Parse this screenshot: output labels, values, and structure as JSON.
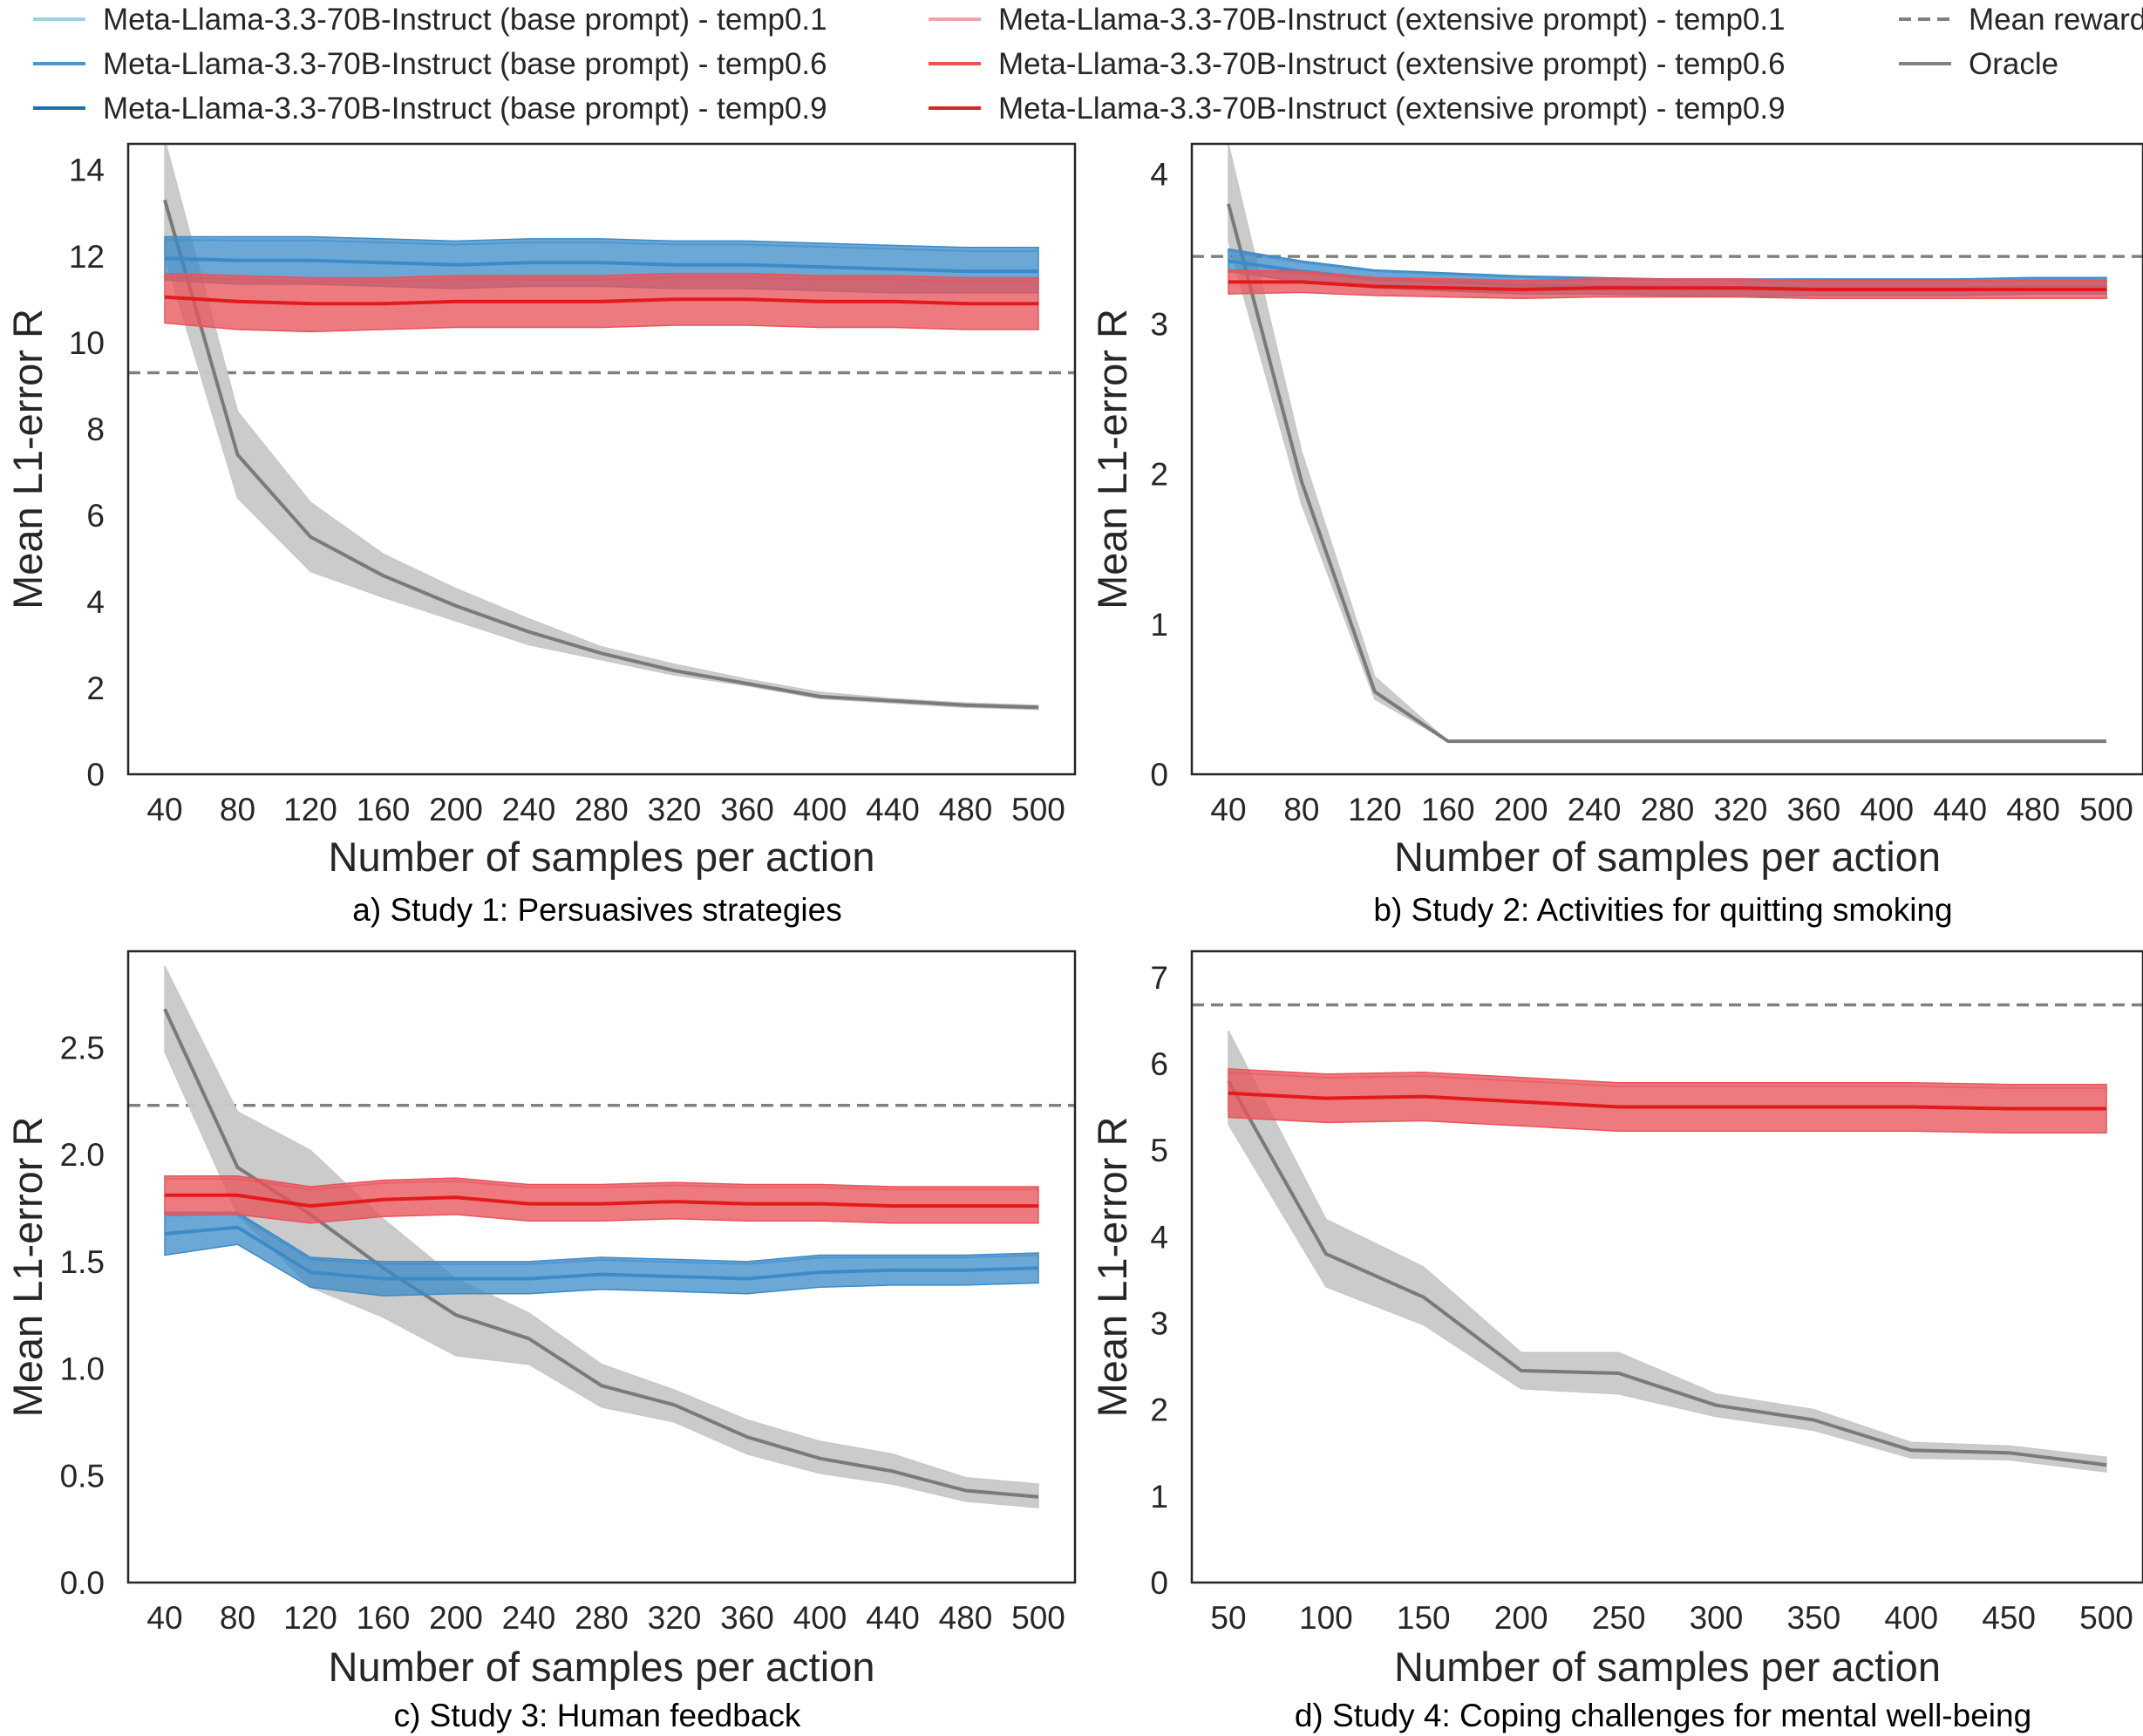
{
  "legend": {
    "entries": [
      {
        "label": "Meta-Llama-3.3-70B-Instruct (base prompt) - temp0.1",
        "color": "#a6cee3",
        "style": "solid"
      },
      {
        "label": "Meta-Llama-3.3-70B-Instruct (base prompt) - temp0.6",
        "color": "#4f95c9",
        "style": "solid"
      },
      {
        "label": "Meta-Llama-3.3-70B-Instruct (base prompt) - temp0.9",
        "color": "#1f6fab",
        "style": "solid"
      },
      {
        "label": "Meta-Llama-3.3-70B-Instruct (extensive prompt) - temp0.1",
        "color": "#f4a3a3",
        "style": "solid"
      },
      {
        "label": "Meta-Llama-3.3-70B-Instruct (extensive prompt) - temp0.6",
        "color": "#eb5454",
        "style": "solid"
      },
      {
        "label": "Meta-Llama-3.3-70B-Instruct (extensive prompt) - temp0.9",
        "color": "#d62728",
        "style": "solid"
      },
      {
        "label": "Mean reward",
        "color": "#808080",
        "style": "dashed"
      },
      {
        "label": "Oracle",
        "color": "#808080",
        "style": "solid"
      }
    ]
  },
  "colors": {
    "base": "#3d8bc6",
    "base_band": "#3b8bc8",
    "extensive": "#e31a1c",
    "extensive_band": "#e8545a",
    "oracle": "#7a7a7a",
    "oracle_band": "#c8c8c8",
    "mean_reward": "#808080"
  },
  "chart_data": [
    {
      "type": "line",
      "caption": "a) Study 1: Persuasives strategies",
      "xlabel": "Number of samples per action",
      "ylabel": "Mean L1-error R",
      "x": [
        40,
        80,
        120,
        160,
        200,
        240,
        280,
        320,
        360,
        400,
        440,
        480,
        500
      ],
      "x_tick_labels": [
        "40",
        "80",
        "120",
        "160",
        "200",
        "240",
        "280",
        "320",
        "360",
        "400",
        "440",
        "480",
        "500"
      ],
      "y_ticks": [
        0,
        2,
        4,
        6,
        8,
        10,
        12,
        14
      ],
      "y_tick_labels": [
        "0",
        "2",
        "4",
        "6",
        "8",
        "10",
        "12",
        "14"
      ],
      "ylim": [
        0,
        14.6
      ],
      "mean_reward": 9.3,
      "series": [
        {
          "name": "base",
          "values": [
            11.95,
            11.9,
            11.9,
            11.85,
            11.8,
            11.85,
            11.85,
            11.8,
            11.8,
            11.75,
            11.7,
            11.65,
            11.65
          ],
          "lower": [
            11.45,
            11.35,
            11.35,
            11.3,
            11.25,
            11.3,
            11.3,
            11.25,
            11.25,
            11.2,
            11.15,
            11.15,
            11.15
          ],
          "upper": [
            12.45,
            12.45,
            12.45,
            12.4,
            12.35,
            12.4,
            12.4,
            12.35,
            12.35,
            12.3,
            12.25,
            12.2,
            12.2
          ]
        },
        {
          "name": "extensive",
          "values": [
            11.05,
            10.95,
            10.9,
            10.9,
            10.95,
            10.95,
            10.95,
            11.0,
            11.0,
            10.95,
            10.95,
            10.9,
            10.9
          ],
          "lower": [
            10.45,
            10.3,
            10.25,
            10.3,
            10.35,
            10.35,
            10.35,
            10.4,
            10.4,
            10.35,
            10.35,
            10.3,
            10.3
          ],
          "upper": [
            11.6,
            11.55,
            11.5,
            11.5,
            11.55,
            11.55,
            11.55,
            11.6,
            11.6,
            11.55,
            11.55,
            11.5,
            11.5
          ]
        },
        {
          "name": "oracle",
          "values": [
            13.3,
            7.4,
            5.5,
            4.6,
            3.9,
            3.3,
            2.8,
            2.4,
            2.1,
            1.8,
            1.7,
            1.6,
            1.55
          ],
          "lower": [
            12.0,
            6.4,
            4.7,
            4.1,
            3.55,
            3.0,
            2.65,
            2.3,
            2.05,
            1.75,
            1.65,
            1.55,
            1.5
          ],
          "upper": [
            14.7,
            8.4,
            6.3,
            5.1,
            4.3,
            3.6,
            2.95,
            2.55,
            2.2,
            1.9,
            1.75,
            1.65,
            1.6
          ]
        }
      ]
    },
    {
      "type": "line",
      "caption": "b) Study 2: Activities for quitting smoking",
      "xlabel": "Number of samples per action",
      "ylabel": "Mean L1-error R",
      "x": [
        40,
        80,
        120,
        160,
        200,
        240,
        280,
        320,
        360,
        400,
        440,
        480,
        500
      ],
      "x_tick_labels": [
        "40",
        "80",
        "120",
        "160",
        "200",
        "240",
        "280",
        "320",
        "360",
        "400",
        "440",
        "480",
        "500"
      ],
      "y_ticks": [
        0,
        1,
        2,
        3,
        4
      ],
      "y_tick_labels": [
        "0",
        "1",
        "2",
        "3",
        "4"
      ],
      "ylim": [
        0,
        4.2
      ],
      "mean_reward": 3.45,
      "series": [
        {
          "name": "base",
          "values": [
            3.42,
            3.35,
            3.3,
            3.28,
            3.26,
            3.25,
            3.25,
            3.24,
            3.24,
            3.24,
            3.24,
            3.25,
            3.25
          ],
          "lower": [
            3.35,
            3.28,
            3.24,
            3.22,
            3.2,
            3.2,
            3.19,
            3.18,
            3.19,
            3.19,
            3.19,
            3.2,
            3.2
          ],
          "upper": [
            3.5,
            3.42,
            3.36,
            3.34,
            3.32,
            3.31,
            3.3,
            3.3,
            3.3,
            3.3,
            3.3,
            3.31,
            3.31
          ]
        },
        {
          "name": "extensive",
          "values": [
            3.28,
            3.28,
            3.25,
            3.24,
            3.23,
            3.24,
            3.24,
            3.24,
            3.23,
            3.23,
            3.23,
            3.23,
            3.23
          ],
          "lower": [
            3.2,
            3.21,
            3.19,
            3.18,
            3.17,
            3.18,
            3.18,
            3.18,
            3.17,
            3.17,
            3.17,
            3.17,
            3.17
          ],
          "upper": [
            3.36,
            3.35,
            3.31,
            3.3,
            3.29,
            3.3,
            3.3,
            3.3,
            3.29,
            3.29,
            3.29,
            3.29,
            3.29
          ]
        },
        {
          "name": "oracle",
          "values": [
            3.8,
            1.95,
            0.55,
            0.22,
            0.22,
            0.22,
            0.22,
            0.22,
            0.22,
            0.22,
            0.22,
            0.22,
            0.22
          ],
          "lower": [
            3.55,
            1.8,
            0.5,
            0.22,
            0.22,
            0.22,
            0.22,
            0.22,
            0.22,
            0.22,
            0.22,
            0.22,
            0.22
          ],
          "upper": [
            4.2,
            2.15,
            0.65,
            0.22,
            0.22,
            0.22,
            0.22,
            0.22,
            0.22,
            0.22,
            0.22,
            0.22,
            0.22
          ]
        }
      ]
    },
    {
      "type": "line",
      "caption": "c) Study 3: Human feedback",
      "xlabel": "Number of samples per action",
      "ylabel": "Mean L1-error R",
      "x": [
        40,
        80,
        120,
        160,
        200,
        240,
        280,
        320,
        360,
        400,
        440,
        480,
        500
      ],
      "x_tick_labels": [
        "40",
        "80",
        "120",
        "160",
        "200",
        "240",
        "280",
        "320",
        "360",
        "400",
        "440",
        "480",
        "500"
      ],
      "y_ticks": [
        0.0,
        0.5,
        1.0,
        1.5,
        2.0,
        2.5
      ],
      "y_tick_labels": [
        "0.0",
        "0.5",
        "1.0",
        "1.5",
        "2.0",
        "2.5"
      ],
      "ylim": [
        0,
        2.95
      ],
      "mean_reward": 2.23,
      "series": [
        {
          "name": "base",
          "values": [
            1.63,
            1.66,
            1.45,
            1.42,
            1.42,
            1.42,
            1.44,
            1.43,
            1.42,
            1.45,
            1.46,
            1.46,
            1.47
          ],
          "lower": [
            1.53,
            1.58,
            1.38,
            1.34,
            1.35,
            1.35,
            1.37,
            1.36,
            1.35,
            1.38,
            1.39,
            1.39,
            1.4
          ],
          "upper": [
            1.73,
            1.73,
            1.52,
            1.5,
            1.5,
            1.5,
            1.52,
            1.51,
            1.5,
            1.53,
            1.53,
            1.53,
            1.54
          ]
        },
        {
          "name": "extensive",
          "values": [
            1.81,
            1.81,
            1.76,
            1.79,
            1.8,
            1.77,
            1.77,
            1.78,
            1.77,
            1.77,
            1.76,
            1.76,
            1.76
          ],
          "lower": [
            1.72,
            1.72,
            1.68,
            1.71,
            1.72,
            1.69,
            1.69,
            1.7,
            1.69,
            1.69,
            1.68,
            1.68,
            1.68
          ],
          "upper": [
            1.9,
            1.9,
            1.85,
            1.88,
            1.89,
            1.86,
            1.86,
            1.87,
            1.86,
            1.86,
            1.85,
            1.85,
            1.85
          ]
        },
        {
          "name": "oracle",
          "values": [
            2.68,
            1.94,
            1.72,
            1.47,
            1.25,
            1.14,
            0.92,
            0.83,
            0.68,
            0.58,
            0.52,
            0.43,
            0.4
          ],
          "lower": [
            2.48,
            1.72,
            1.38,
            1.24,
            1.06,
            1.02,
            0.82,
            0.75,
            0.6,
            0.51,
            0.46,
            0.38,
            0.35
          ],
          "upper": [
            2.88,
            2.2,
            2.02,
            1.7,
            1.42,
            1.26,
            1.02,
            0.9,
            0.76,
            0.66,
            0.6,
            0.49,
            0.46
          ]
        }
      ]
    },
    {
      "type": "line",
      "caption": "d) Study 4: Coping challenges for mental well-being",
      "xlabel": "Number of samples per action",
      "ylabel": "Mean L1-error R",
      "x": [
        50,
        100,
        150,
        200,
        250,
        300,
        350,
        400,
        450,
        500
      ],
      "x_tick_labels": [
        "50",
        "100",
        "150",
        "200",
        "250",
        "300",
        "350",
        "400",
        "450",
        "500"
      ],
      "y_ticks": [
        0,
        1,
        2,
        3,
        4,
        5,
        6,
        7
      ],
      "y_tick_labels": [
        "0",
        "1",
        "2",
        "3",
        "4",
        "5",
        "6",
        "7"
      ],
      "ylim": [
        0,
        7.3
      ],
      "mean_reward": 6.68,
      "series": [
        {
          "name": "extensive",
          "values": [
            5.66,
            5.6,
            5.62,
            5.56,
            5.5,
            5.5,
            5.5,
            5.5,
            5.48,
            5.48
          ],
          "lower": [
            5.38,
            5.32,
            5.34,
            5.28,
            5.22,
            5.22,
            5.22,
            5.22,
            5.2,
            5.2
          ],
          "upper": [
            5.94,
            5.88,
            5.9,
            5.84,
            5.78,
            5.78,
            5.78,
            5.78,
            5.76,
            5.76
          ]
        },
        {
          "name": "oracle",
          "values": [
            5.8,
            3.8,
            3.3,
            2.45,
            2.42,
            2.05,
            1.88,
            1.53,
            1.5,
            1.36
          ],
          "lower": [
            5.3,
            3.42,
            2.98,
            2.24,
            2.18,
            1.92,
            1.76,
            1.44,
            1.42,
            1.28
          ],
          "upper": [
            6.38,
            4.2,
            3.65,
            2.66,
            2.66,
            2.18,
            2.0,
            1.62,
            1.58,
            1.45
          ]
        }
      ]
    }
  ]
}
